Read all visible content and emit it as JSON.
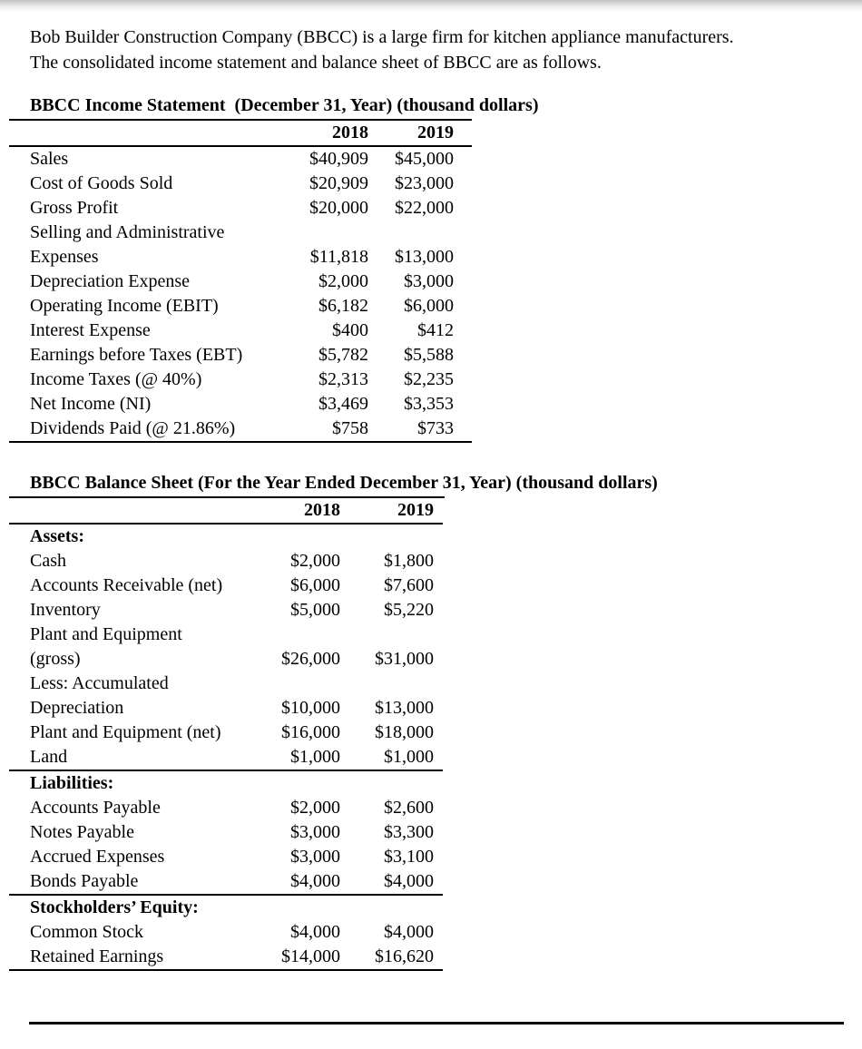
{
  "intro": {
    "text": "Bob Builder Construction Company (BBCC) is a large firm for kitchen appliance manufacturers.\nThe consolidated income statement and balance sheet of BBCC are as follows."
  },
  "income_statement": {
    "title": "BBCC Income Statement  (December 31, Year) (thousand dollars)",
    "columns": [
      "2018",
      "2019"
    ],
    "rows": [
      {
        "label": "Sales",
        "values": [
          "$40,909",
          "$45,000"
        ]
      },
      {
        "label": "Cost of Goods Sold",
        "values": [
          "$20,909",
          "$23,000"
        ]
      },
      {
        "label": "Gross Profit",
        "values": [
          "$20,000",
          "$22,000"
        ]
      },
      {
        "label": "Selling and Administrative\nExpenses",
        "values": [
          "$11,818",
          "$13,000"
        ]
      },
      {
        "label": "Depreciation Expense",
        "values": [
          "$2,000",
          "$3,000"
        ]
      },
      {
        "label": "Operating Income (EBIT)",
        "values": [
          "$6,182",
          "$6,000"
        ]
      },
      {
        "label": "Interest Expense",
        "values": [
          "$400",
          "$412"
        ]
      },
      {
        "label": "Earnings before Taxes (EBT)",
        "values": [
          "$5,782",
          "$5,588"
        ]
      },
      {
        "label": "Income Taxes (@ 40%)",
        "values": [
          "$2,313",
          "$2,235"
        ]
      },
      {
        "label": "Net Income (NI)",
        "values": [
          "$3,469",
          "$3,353"
        ]
      },
      {
        "label": "Dividends Paid (@ 21.86%)",
        "values": [
          "$758",
          "$733"
        ]
      }
    ]
  },
  "balance_sheet": {
    "title": "BBCC Balance Sheet (For the Year Ended December 31, Year) (thousand dollars)",
    "columns": [
      "2018",
      "2019"
    ],
    "sections": [
      {
        "heading": "Assets:",
        "rows": [
          {
            "label": "Cash",
            "values": [
              "$2,000",
              "$1,800"
            ]
          },
          {
            "label": "Accounts Receivable (net)",
            "values": [
              "$6,000",
              "$7,600"
            ]
          },
          {
            "label": "Inventory",
            "values": [
              "$5,000",
              "$5,220"
            ]
          },
          {
            "label": "Plant and Equipment\n(gross)",
            "values": [
              "$26,000",
              "$31,000"
            ]
          },
          {
            "label": "Less: Accumulated\nDepreciation",
            "values": [
              "$10,000",
              "$13,000"
            ]
          },
          {
            "label": "Plant and Equipment (net)",
            "values": [
              "$16,000",
              "$18,000"
            ]
          },
          {
            "label": "Land",
            "values": [
              "$1,000",
              "$1,000"
            ]
          }
        ]
      },
      {
        "heading": "Liabilities:",
        "rows": [
          {
            "label": "Accounts Payable",
            "values": [
              "$2,000",
              "$2,600"
            ]
          },
          {
            "label": "Notes Payable",
            "values": [
              "$3,000",
              "$3,300"
            ]
          },
          {
            "label": "Accrued Expenses",
            "values": [
              "$3,000",
              "$3,100"
            ]
          },
          {
            "label": "Bonds Payable",
            "values": [
              "$4,000",
              "$4,000"
            ]
          }
        ]
      },
      {
        "heading": "Stockholders’ Equity:",
        "rows": [
          {
            "label": "Common Stock",
            "values": [
              "$4,000",
              "$4,000"
            ]
          },
          {
            "label": "Retained Earnings",
            "values": [
              "$14,000",
              "$16,620"
            ]
          }
        ]
      }
    ]
  },
  "colors": {
    "text": "#000000",
    "rule": "#000000",
    "page_bg": "#ffffff",
    "top_shade": "#c2c2c2"
  }
}
